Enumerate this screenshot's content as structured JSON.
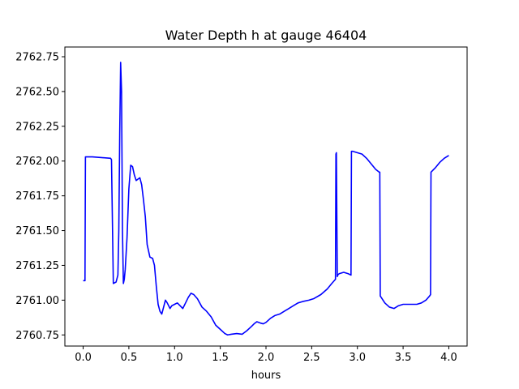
{
  "chart_data": {
    "type": "line",
    "title": "Water Depth h at gauge 46404",
    "xlabel": "hours",
    "ylabel": "",
    "xlim": [
      -0.2,
      4.2
    ],
    "ylim": [
      2760.67,
      2762.82
    ],
    "grid": false,
    "xticks": [
      0.0,
      0.5,
      1.0,
      1.5,
      2.0,
      2.5,
      3.0,
      3.5,
      4.0
    ],
    "xtick_labels": [
      "0.0",
      "0.5",
      "1.0",
      "1.5",
      "2.0",
      "2.5",
      "3.0",
      "3.5",
      "4.0"
    ],
    "yticks": [
      2760.75,
      2761.0,
      2761.25,
      2761.5,
      2761.75,
      2762.0,
      2762.25,
      2762.5,
      2762.75
    ],
    "ytick_labels": [
      "2760.75",
      "2761.00",
      "2761.25",
      "2761.50",
      "2761.75",
      "2762.00",
      "2762.25",
      "2762.50",
      "2762.75"
    ],
    "series": [
      {
        "color": "#0000ff",
        "x": [
          0.0,
          0.02,
          0.025,
          0.1,
          0.2,
          0.3,
          0.31,
          0.33,
          0.36,
          0.38,
          0.39,
          0.4,
          0.41,
          0.42,
          0.43,
          0.44,
          0.45,
          0.46,
          0.48,
          0.5,
          0.52,
          0.54,
          0.56,
          0.58,
          0.6,
          0.62,
          0.64,
          0.66,
          0.68,
          0.7,
          0.73,
          0.76,
          0.78,
          0.8,
          0.82,
          0.84,
          0.86,
          0.88,
          0.9,
          0.92,
          0.95,
          0.97,
          1.0,
          1.03,
          1.06,
          1.09,
          1.12,
          1.15,
          1.18,
          1.21,
          1.25,
          1.3,
          1.35,
          1.4,
          1.45,
          1.5,
          1.55,
          1.58,
          1.62,
          1.68,
          1.74,
          1.79,
          1.84,
          1.87,
          1.9,
          1.94,
          1.97,
          2.0,
          2.05,
          2.1,
          2.15,
          2.2,
          2.25,
          2.3,
          2.35,
          2.4,
          2.47,
          2.52,
          2.6,
          2.67,
          2.72,
          2.76,
          2.765,
          2.77,
          2.78,
          2.785,
          2.8,
          2.85,
          2.9,
          2.93,
          2.935,
          2.95,
          3.05,
          3.1,
          3.15,
          3.2,
          3.24,
          3.245,
          3.25,
          3.3,
          3.35,
          3.4,
          3.45,
          3.5,
          3.55,
          3.6,
          3.65,
          3.7,
          3.75,
          3.79,
          3.8,
          3.805,
          3.85,
          3.9,
          3.95,
          4.0
        ],
        "y": [
          2761.14,
          2761.14,
          2762.03,
          2762.03,
          2762.025,
          2762.02,
          2762.01,
          2761.12,
          2761.13,
          2761.18,
          2761.5,
          2762.2,
          2762.71,
          2762.5,
          2761.5,
          2761.12,
          2761.15,
          2761.22,
          2761.45,
          2761.8,
          2761.97,
          2761.96,
          2761.9,
          2761.86,
          2761.87,
          2761.88,
          2761.83,
          2761.72,
          2761.6,
          2761.4,
          2761.31,
          2761.3,
          2761.25,
          2761.1,
          2760.97,
          2760.92,
          2760.9,
          2760.95,
          2761.0,
          2760.98,
          2760.94,
          2760.96,
          2760.97,
          2760.98,
          2760.96,
          2760.94,
          2760.98,
          2761.02,
          2761.05,
          2761.04,
          2761.01,
          2760.95,
          2760.92,
          2760.88,
          2760.82,
          2760.79,
          2760.76,
          2760.75,
          2760.755,
          2760.76,
          2760.755,
          2760.78,
          2760.81,
          2760.83,
          2760.845,
          2760.835,
          2760.83,
          2760.84,
          2760.87,
          2760.89,
          2760.9,
          2760.92,
          2760.94,
          2760.96,
          2760.98,
          2760.99,
          2761.0,
          2761.01,
          2761.04,
          2761.08,
          2761.12,
          2761.15,
          2762.05,
          2762.06,
          2761.17,
          2761.18,
          2761.19,
          2761.2,
          2761.19,
          2761.18,
          2762.07,
          2762.07,
          2762.05,
          2762.02,
          2761.98,
          2761.94,
          2761.92,
          2761.92,
          2761.03,
          2760.98,
          2760.95,
          2760.94,
          2760.96,
          2760.97,
          2760.97,
          2760.97,
          2760.97,
          2760.98,
          2761.0,
          2761.03,
          2761.04,
          2761.92,
          2761.95,
          2761.99,
          2762.02,
          2762.04
        ]
      }
    ]
  }
}
